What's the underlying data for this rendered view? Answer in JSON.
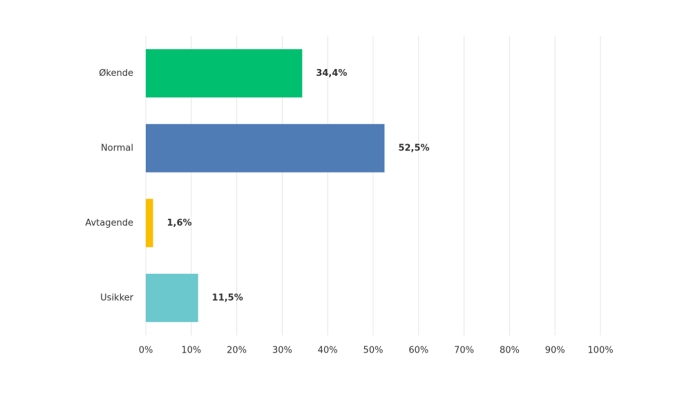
{
  "chart_data": {
    "type": "bar",
    "orientation": "horizontal",
    "categories": [
      "Økende",
      "Normal",
      "Avtagende",
      "Usikker"
    ],
    "values": [
      34.4,
      52.5,
      1.6,
      11.5
    ],
    "value_labels": [
      "34,4%",
      "52,5%",
      "1,6%",
      "11,5%"
    ],
    "colors": [
      "#00bf6f",
      "#507cb6",
      "#f9be00",
      "#6bc8cd"
    ],
    "xlim": [
      0,
      100
    ],
    "xticks": [
      {
        "value": 0,
        "label": "0%"
      },
      {
        "value": 10,
        "label": "10%"
      },
      {
        "value": 20,
        "label": "20%"
      },
      {
        "value": 30,
        "label": "30%"
      },
      {
        "value": 40,
        "label": "40%"
      },
      {
        "value": 50,
        "label": "50%"
      },
      {
        "value": 60,
        "label": "60%"
      },
      {
        "value": 70,
        "label": "70%"
      },
      {
        "value": 80,
        "label": "80%"
      },
      {
        "value": 90,
        "label": "90%"
      },
      {
        "value": 100,
        "label": "100%"
      }
    ],
    "grid": true
  }
}
